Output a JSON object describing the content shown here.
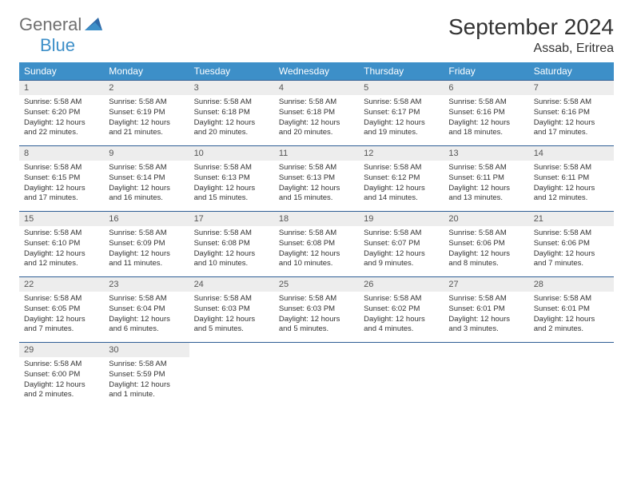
{
  "logo": {
    "text1": "General",
    "text2": "Blue"
  },
  "title": "September 2024",
  "location": "Assab, Eritrea",
  "colors": {
    "header_bg": "#3d8fc8",
    "header_text": "#ffffff",
    "daynum_bg": "#ededed",
    "row_border": "#2f5e95",
    "logo_gray": "#6f6f6f",
    "logo_blue": "#3d8fc8"
  },
  "day_headers": [
    "Sunday",
    "Monday",
    "Tuesday",
    "Wednesday",
    "Thursday",
    "Friday",
    "Saturday"
  ],
  "weeks": [
    [
      {
        "n": "1",
        "sr": "5:58 AM",
        "ss": "6:20 PM",
        "dl1": "Daylight: 12 hours",
        "dl2": "and 22 minutes."
      },
      {
        "n": "2",
        "sr": "5:58 AM",
        "ss": "6:19 PM",
        "dl1": "Daylight: 12 hours",
        "dl2": "and 21 minutes."
      },
      {
        "n": "3",
        "sr": "5:58 AM",
        "ss": "6:18 PM",
        "dl1": "Daylight: 12 hours",
        "dl2": "and 20 minutes."
      },
      {
        "n": "4",
        "sr": "5:58 AM",
        "ss": "6:18 PM",
        "dl1": "Daylight: 12 hours",
        "dl2": "and 20 minutes."
      },
      {
        "n": "5",
        "sr": "5:58 AM",
        "ss": "6:17 PM",
        "dl1": "Daylight: 12 hours",
        "dl2": "and 19 minutes."
      },
      {
        "n": "6",
        "sr": "5:58 AM",
        "ss": "6:16 PM",
        "dl1": "Daylight: 12 hours",
        "dl2": "and 18 minutes."
      },
      {
        "n": "7",
        "sr": "5:58 AM",
        "ss": "6:16 PM",
        "dl1": "Daylight: 12 hours",
        "dl2": "and 17 minutes."
      }
    ],
    [
      {
        "n": "8",
        "sr": "5:58 AM",
        "ss": "6:15 PM",
        "dl1": "Daylight: 12 hours",
        "dl2": "and 17 minutes."
      },
      {
        "n": "9",
        "sr": "5:58 AM",
        "ss": "6:14 PM",
        "dl1": "Daylight: 12 hours",
        "dl2": "and 16 minutes."
      },
      {
        "n": "10",
        "sr": "5:58 AM",
        "ss": "6:13 PM",
        "dl1": "Daylight: 12 hours",
        "dl2": "and 15 minutes."
      },
      {
        "n": "11",
        "sr": "5:58 AM",
        "ss": "6:13 PM",
        "dl1": "Daylight: 12 hours",
        "dl2": "and 15 minutes."
      },
      {
        "n": "12",
        "sr": "5:58 AM",
        "ss": "6:12 PM",
        "dl1": "Daylight: 12 hours",
        "dl2": "and 14 minutes."
      },
      {
        "n": "13",
        "sr": "5:58 AM",
        "ss": "6:11 PM",
        "dl1": "Daylight: 12 hours",
        "dl2": "and 13 minutes."
      },
      {
        "n": "14",
        "sr": "5:58 AM",
        "ss": "6:11 PM",
        "dl1": "Daylight: 12 hours",
        "dl2": "and 12 minutes."
      }
    ],
    [
      {
        "n": "15",
        "sr": "5:58 AM",
        "ss": "6:10 PM",
        "dl1": "Daylight: 12 hours",
        "dl2": "and 12 minutes."
      },
      {
        "n": "16",
        "sr": "5:58 AM",
        "ss": "6:09 PM",
        "dl1": "Daylight: 12 hours",
        "dl2": "and 11 minutes."
      },
      {
        "n": "17",
        "sr": "5:58 AM",
        "ss": "6:08 PM",
        "dl1": "Daylight: 12 hours",
        "dl2": "and 10 minutes."
      },
      {
        "n": "18",
        "sr": "5:58 AM",
        "ss": "6:08 PM",
        "dl1": "Daylight: 12 hours",
        "dl2": "and 10 minutes."
      },
      {
        "n": "19",
        "sr": "5:58 AM",
        "ss": "6:07 PM",
        "dl1": "Daylight: 12 hours",
        "dl2": "and 9 minutes."
      },
      {
        "n": "20",
        "sr": "5:58 AM",
        "ss": "6:06 PM",
        "dl1": "Daylight: 12 hours",
        "dl2": "and 8 minutes."
      },
      {
        "n": "21",
        "sr": "5:58 AM",
        "ss": "6:06 PM",
        "dl1": "Daylight: 12 hours",
        "dl2": "and 7 minutes."
      }
    ],
    [
      {
        "n": "22",
        "sr": "5:58 AM",
        "ss": "6:05 PM",
        "dl1": "Daylight: 12 hours",
        "dl2": "and 7 minutes."
      },
      {
        "n": "23",
        "sr": "5:58 AM",
        "ss": "6:04 PM",
        "dl1": "Daylight: 12 hours",
        "dl2": "and 6 minutes."
      },
      {
        "n": "24",
        "sr": "5:58 AM",
        "ss": "6:03 PM",
        "dl1": "Daylight: 12 hours",
        "dl2": "and 5 minutes."
      },
      {
        "n": "25",
        "sr": "5:58 AM",
        "ss": "6:03 PM",
        "dl1": "Daylight: 12 hours",
        "dl2": "and 5 minutes."
      },
      {
        "n": "26",
        "sr": "5:58 AM",
        "ss": "6:02 PM",
        "dl1": "Daylight: 12 hours",
        "dl2": "and 4 minutes."
      },
      {
        "n": "27",
        "sr": "5:58 AM",
        "ss": "6:01 PM",
        "dl1": "Daylight: 12 hours",
        "dl2": "and 3 minutes."
      },
      {
        "n": "28",
        "sr": "5:58 AM",
        "ss": "6:01 PM",
        "dl1": "Daylight: 12 hours",
        "dl2": "and 2 minutes."
      }
    ],
    [
      {
        "n": "29",
        "sr": "5:58 AM",
        "ss": "6:00 PM",
        "dl1": "Daylight: 12 hours",
        "dl2": "and 2 minutes."
      },
      {
        "n": "30",
        "sr": "5:58 AM",
        "ss": "5:59 PM",
        "dl1": "Daylight: 12 hours",
        "dl2": "and 1 minute."
      },
      null,
      null,
      null,
      null,
      null
    ]
  ],
  "labels": {
    "sunrise": "Sunrise:",
    "sunset": "Sunset:"
  }
}
